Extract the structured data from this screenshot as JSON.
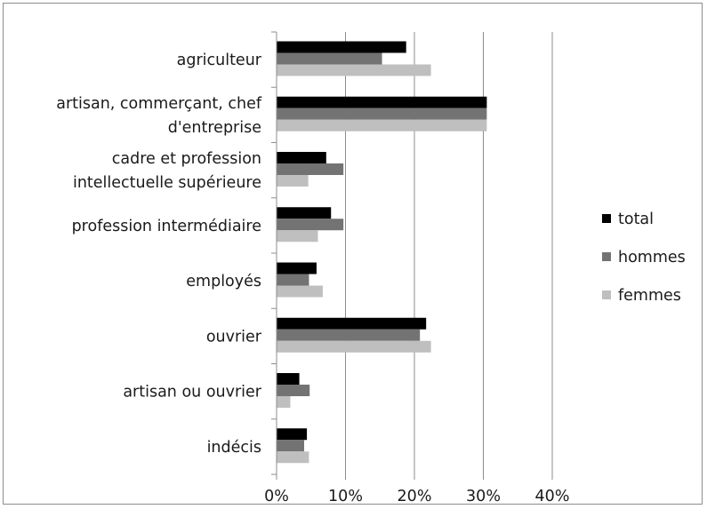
{
  "chart_data": {
    "type": "bar",
    "orientation": "horizontal",
    "categories": [
      [
        "agriculteur"
      ],
      [
        "artisan, commerçant, chef",
        "d'entreprise"
      ],
      [
        "cadre et profession",
        "intellectuelle supérieure"
      ],
      [
        "profession intermédiaire"
      ],
      [
        "employés"
      ],
      [
        "ouvrier"
      ],
      [
        "artisan ou ouvrier"
      ],
      [
        "indécis"
      ]
    ],
    "series": [
      {
        "name": "total",
        "color": "#000000",
        "values": [
          0.188,
          0.305,
          0.072,
          0.079,
          0.058,
          0.217,
          0.033,
          0.044
        ]
      },
      {
        "name": "hommes",
        "color": "#737373",
        "values": [
          0.153,
          0.305,
          0.097,
          0.097,
          0.047,
          0.208,
          0.048,
          0.04
        ]
      },
      {
        "name": "femmes",
        "color": "#bfbfbf",
        "values": [
          0.224,
          0.305,
          0.046,
          0.06,
          0.067,
          0.224,
          0.02,
          0.047
        ]
      }
    ],
    "xlim": [
      0,
      0.4
    ],
    "xticks": [
      "0%",
      "10%",
      "20%",
      "30%",
      "40%"
    ],
    "grid": true,
    "legend_position": "right",
    "title": "",
    "xlabel": "",
    "ylabel": ""
  }
}
